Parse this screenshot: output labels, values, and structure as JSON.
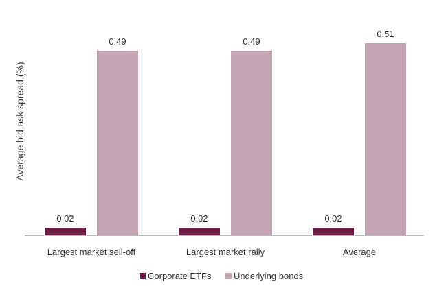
{
  "chart_data": {
    "type": "bar",
    "title": "",
    "xlabel": "",
    "ylabel": "Average bid-ask spread (%)",
    "categories": [
      "Largest market sell-off",
      "Largest market rally",
      "Average"
    ],
    "series": [
      {
        "name": "Corporate ETFs",
        "values": [
          0.02,
          0.02,
          0.02
        ],
        "labels": [
          "0.02",
          "0.02",
          "0.02"
        ],
        "color": "#6b1d45"
      },
      {
        "name": "Underlying bonds",
        "values": [
          0.49,
          0.49,
          0.51
        ],
        "labels": [
          "0.49",
          "0.49",
          "0.51"
        ],
        "color": "#c4a5b4"
      }
    ],
    "ylim": [
      0,
      0.6
    ],
    "grid": false,
    "legend": "bottom"
  }
}
